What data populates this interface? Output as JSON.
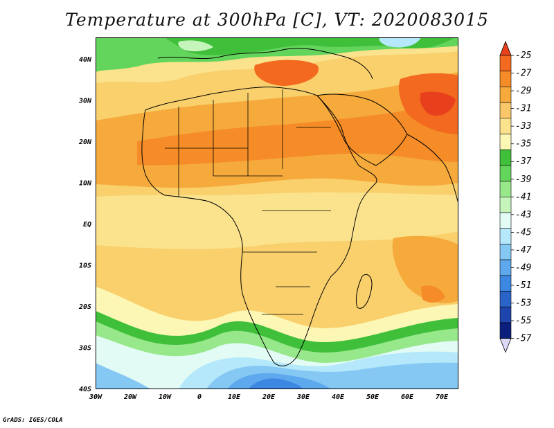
{
  "title": "Temperature at 300hPa [C], VT: 2020083015",
  "credit": "GrADS: IGES/COLA",
  "map": {
    "lon_labels": [
      "30W",
      "20W",
      "10W",
      "0",
      "10E",
      "20E",
      "30E",
      "40E",
      "50E",
      "60E",
      "70E"
    ],
    "lat_labels": [
      "40N",
      "30N",
      "20N",
      "10N",
      "EQ",
      "10S",
      "20S",
      "30S",
      "40S"
    ]
  },
  "colorbar": {
    "labels": [
      "-25",
      "-27",
      "-29",
      "-31",
      "-33",
      "-35",
      "-37",
      "-39",
      "-41",
      "-43",
      "-45",
      "-47",
      "-49",
      "-51",
      "-53",
      "-55",
      "-57"
    ],
    "colors": [
      "#e8401c",
      "#f2691f",
      "#f58c27",
      "#f6aa3c",
      "#f9c76a",
      "#fbe38e",
      "#fcf7b4",
      "#3fbf3a",
      "#63d55c",
      "#96e88a",
      "#c6f5bc",
      "#e2fbf5",
      "#b4e8fa",
      "#86c8f4",
      "#5ea8ee",
      "#3c87e2",
      "#2b64c9",
      "#1d45ad",
      "#0b1f7c",
      "#dcd8f8"
    ]
  }
}
